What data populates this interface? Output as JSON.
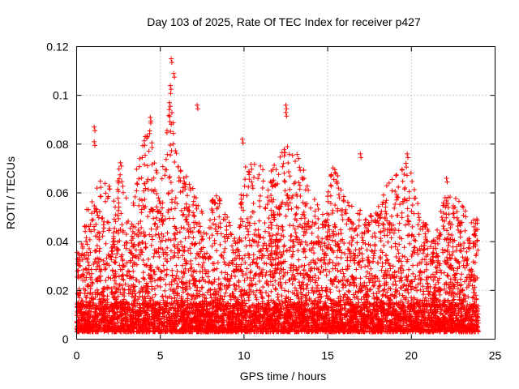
{
  "chart_data": {
    "type": "scatter",
    "title": "Day 103 of 2025, Rate Of TEC Index for receiver p427",
    "xlabel": "GPS time / hours",
    "ylabel": "ROTI / TECUs",
    "xlim": [
      0,
      25
    ],
    "ylim": [
      0,
      0.12
    ],
    "xticks": [
      0,
      5,
      10,
      15,
      20,
      25
    ],
    "yticks": [
      0,
      0.02,
      0.04,
      0.06,
      0.08,
      0.1,
      0.12
    ],
    "x_tick_labels": [
      "0",
      "5",
      "10",
      "15",
      "20",
      "25"
    ],
    "y_tick_labels": [
      "0",
      "0.02",
      "0.04",
      "0.06",
      "0.08",
      "0.1",
      "0.12"
    ],
    "grid": true,
    "marker": "plus",
    "color": "#ff0000",
    "x_extent": [
      0,
      24
    ],
    "notable_points": [
      {
        "x": 1.05,
        "y": 0.087
      },
      {
        "x": 1.05,
        "y": 0.081
      },
      {
        "x": 4.4,
        "y": 0.091
      },
      {
        "x": 5.65,
        "y": 0.115
      },
      {
        "x": 5.8,
        "y": 0.109
      },
      {
        "x": 5.6,
        "y": 0.104
      },
      {
        "x": 5.55,
        "y": 0.097
      },
      {
        "x": 7.2,
        "y": 0.096
      },
      {
        "x": 9.9,
        "y": 0.082
      },
      {
        "x": 12.5,
        "y": 0.096
      },
      {
        "x": 12.5,
        "y": 0.093
      },
      {
        "x": 16.95,
        "y": 0.076
      },
      {
        "x": 19.75,
        "y": 0.076
      },
      {
        "x": 22.1,
        "y": 0.066
      }
    ],
    "envelope": [
      {
        "x": 0.25,
        "y": 0.036
      },
      {
        "x": 0.6,
        "y": 0.055
      },
      {
        "x": 1.05,
        "y": 0.059
      },
      {
        "x": 1.6,
        "y": 0.07
      },
      {
        "x": 2.3,
        "y": 0.055
      },
      {
        "x": 2.6,
        "y": 0.075
      },
      {
        "x": 3.2,
        "y": 0.047
      },
      {
        "x": 3.6,
        "y": 0.072
      },
      {
        "x": 4.4,
        "y": 0.09
      },
      {
        "x": 5.0,
        "y": 0.06
      },
      {
        "x": 5.6,
        "y": 0.104
      },
      {
        "x": 6.1,
        "y": 0.07
      },
      {
        "x": 6.8,
        "y": 0.065
      },
      {
        "x": 7.5,
        "y": 0.052
      },
      {
        "x": 8.5,
        "y": 0.06
      },
      {
        "x": 9.5,
        "y": 0.04
      },
      {
        "x": 9.9,
        "y": 0.07
      },
      {
        "x": 10.5,
        "y": 0.072
      },
      {
        "x": 11.5,
        "y": 0.07
      },
      {
        "x": 12.5,
        "y": 0.08
      },
      {
        "x": 13.3,
        "y": 0.075
      },
      {
        "x": 14.0,
        "y": 0.06
      },
      {
        "x": 14.8,
        "y": 0.05
      },
      {
        "x": 15.3,
        "y": 0.072
      },
      {
        "x": 16.3,
        "y": 0.055
      },
      {
        "x": 17.8,
        "y": 0.05
      },
      {
        "x": 18.5,
        "y": 0.063
      },
      {
        "x": 19.2,
        "y": 0.068
      },
      {
        "x": 19.75,
        "y": 0.075
      },
      {
        "x": 20.5,
        "y": 0.052
      },
      {
        "x": 21.3,
        "y": 0.042
      },
      {
        "x": 22.1,
        "y": 0.06
      },
      {
        "x": 22.7,
        "y": 0.058
      },
      {
        "x": 23.3,
        "y": 0.052
      },
      {
        "x": 23.8,
        "y": 0.05
      }
    ]
  }
}
